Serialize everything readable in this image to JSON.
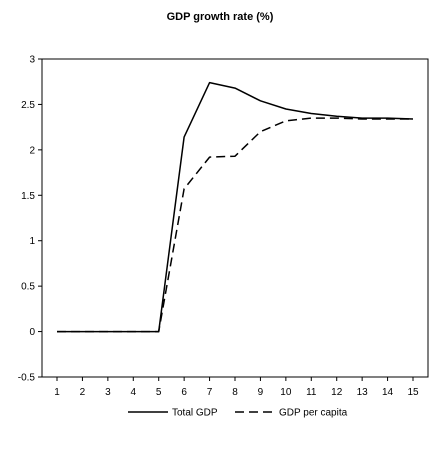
{
  "chart_data": {
    "type": "line",
    "title": "GDP growth rate (%)",
    "xlabel": "",
    "ylabel": "",
    "x": [
      1,
      2,
      3,
      4,
      5,
      6,
      7,
      8,
      9,
      10,
      11,
      12,
      13,
      14,
      15
    ],
    "xlim": [
      1,
      15
    ],
    "ylim": [
      -0.5,
      3
    ],
    "y_ticks": [
      "-0.5",
      "0",
      "0.5",
      "1",
      "1.5",
      "2",
      "2.5",
      "3"
    ],
    "x_ticks": [
      "1",
      "2",
      "3",
      "4",
      "5",
      "6",
      "7",
      "8",
      "9",
      "10",
      "11",
      "12",
      "13",
      "14",
      "15"
    ],
    "grid": false,
    "legend_position": "bottom",
    "series": [
      {
        "name": "Total GDP",
        "style": "solid",
        "color": "#000000",
        "values": [
          0,
          0,
          0,
          0,
          0,
          2.14,
          2.74,
          2.68,
          2.54,
          2.45,
          2.4,
          2.37,
          2.35,
          2.35,
          2.34
        ]
      },
      {
        "name": "GDP per capita",
        "style": "dashed",
        "color": "#000000",
        "values": [
          0,
          0,
          0,
          0,
          0,
          1.57,
          1.92,
          1.93,
          2.2,
          2.32,
          2.35,
          2.35,
          2.34,
          2.34,
          2.34
        ]
      }
    ]
  }
}
